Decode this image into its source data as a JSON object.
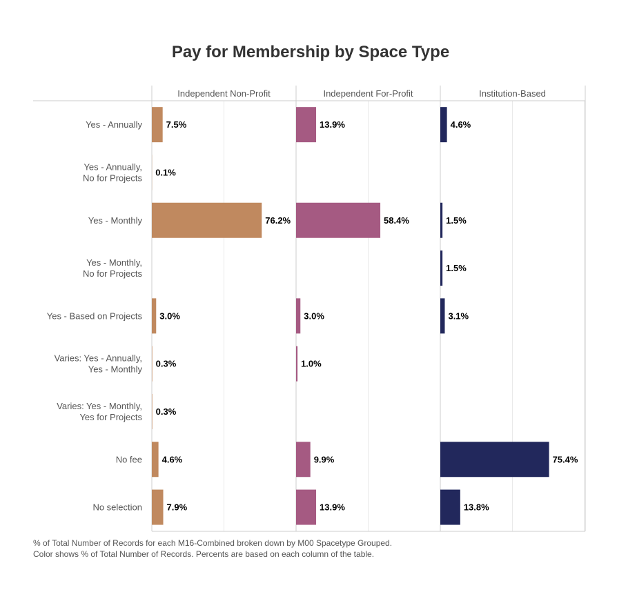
{
  "chart_data": {
    "type": "bar",
    "orientation": "horizontal",
    "title": "Pay for Membership by Space Type",
    "categories": [
      [
        "Yes - Annually"
      ],
      [
        "Yes - Annually,",
        "No for Projects"
      ],
      [
        "Yes - Monthly"
      ],
      [
        "Yes - Monthly,",
        "No for Projects"
      ],
      [
        "Yes - Based on Projects"
      ],
      [
        "Varies: Yes - Annually,",
        "Yes - Monthly"
      ],
      [
        "Varies: Yes - Monthly,",
        "Yes for Projects"
      ],
      [
        "No fee"
      ],
      [
        "No selection"
      ]
    ],
    "series": [
      {
        "name": "Independent Non-Profit",
        "color": "#c0895f",
        "values": [
          7.5,
          0.1,
          76.2,
          null,
          3.0,
          0.3,
          0.3,
          4.6,
          7.9
        ],
        "labels": [
          "7.5%",
          "0.1%",
          "76.2%",
          null,
          "3.0%",
          "0.3%",
          "0.3%",
          "4.6%",
          "7.9%"
        ]
      },
      {
        "name": "Independent For-Profit",
        "color": "#a55a82",
        "values": [
          13.9,
          null,
          58.4,
          null,
          3.0,
          1.0,
          null,
          9.9,
          13.9
        ],
        "labels": [
          "13.9%",
          null,
          "58.4%",
          null,
          "3.0%",
          "1.0%",
          null,
          "9.9%",
          "13.9%"
        ]
      },
      {
        "name": "Institution-Based",
        "color": "#22285c",
        "values": [
          4.6,
          null,
          1.5,
          1.5,
          3.1,
          null,
          null,
          75.4,
          13.8
        ],
        "labels": [
          "4.6%",
          null,
          "1.5%",
          "1.5%",
          "3.1%",
          null,
          null,
          "75.4%",
          "13.8%"
        ]
      }
    ],
    "xlim": [
      0,
      100
    ],
    "grid": true,
    "grid_color": "#e9e9e9",
    "axis_color": "#cccccc",
    "label_color": "#555555",
    "value_label_color": "#000000"
  },
  "footnotes": [
    "% of Total Number of Records for each M16-Combined broken down by M00 Spacetype Grouped.",
    "Color shows % of Total Number of Records. Percents are based on each column of the table."
  ]
}
